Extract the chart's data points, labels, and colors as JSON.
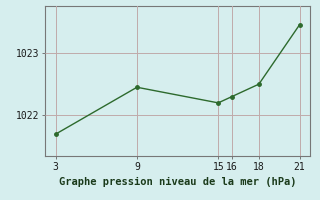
{
  "x": [
    3,
    9,
    15,
    16,
    18,
    21
  ],
  "y": [
    1021.7,
    1022.45,
    1022.2,
    1022.3,
    1022.5,
    1023.45
  ],
  "line_color": "#2d6a2d",
  "marker": "o",
  "marker_size": 2.5,
  "line_width": 1.0,
  "background_color": "#d6eeee",
  "grid_color": "#c0aaaa",
  "xlabel": "Graphe pression niveau de la mer (hPa)",
  "xlabel_fontsize": 7.5,
  "xticks": [
    3,
    9,
    15,
    16,
    18,
    21
  ],
  "ytick_labels": [
    1022,
    1023
  ],
  "ylim": [
    1021.35,
    1023.75
  ],
  "xlim": [
    2.2,
    21.8
  ],
  "tick_fontsize": 7,
  "title": ""
}
